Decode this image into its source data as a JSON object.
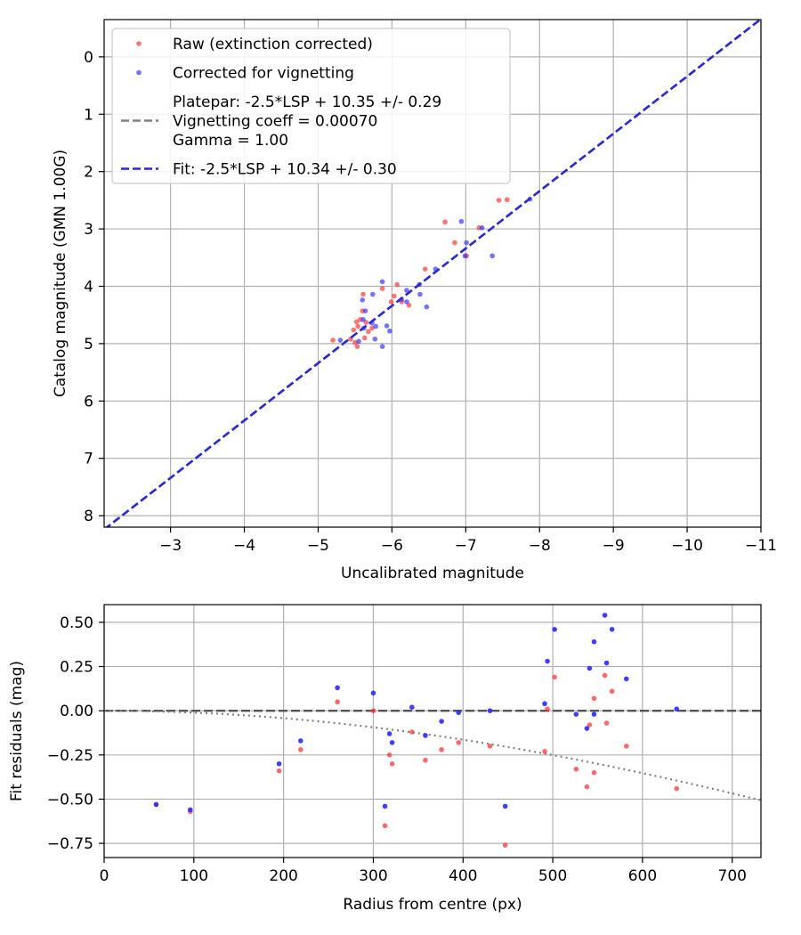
{
  "colors": {
    "raw": "#ff2a2a",
    "corrected": "#2a2aff",
    "fit": "#2a2ad4",
    "platepar": "#808080",
    "vignetting_curve": "#808080",
    "grid": "#b0b0b0"
  },
  "chart_data": [
    {
      "type": "scatter",
      "xlabel": "Uncalibrated magnitude",
      "ylabel": "Catalog magnitude (GMN 1.00G)",
      "xlim": [
        -2.1,
        -11
      ],
      "ylim": [
        8.2,
        -0.65
      ],
      "xticks": [
        -3,
        -4,
        -5,
        -6,
        -7,
        -8,
        -9,
        -10,
        -11
      ],
      "xtick_labels": [
        "−3",
        "−4",
        "−5",
        "−6",
        "−7",
        "−8",
        "−9",
        "−10",
        "−11"
      ],
      "yticks": [
        0,
        1,
        2,
        3,
        4,
        5,
        6,
        7,
        8
      ],
      "ytick_labels": [
        "0",
        "1",
        "2",
        "3",
        "4",
        "5",
        "6",
        "7",
        "8"
      ],
      "grid": true,
      "legend": {
        "location": "top-left",
        "entries": [
          {
            "key": "raw",
            "marker": "dot",
            "lines": [
              "Raw (extinction corrected)"
            ]
          },
          {
            "key": "corrected",
            "marker": "dot",
            "lines": [
              "Corrected for vignetting"
            ]
          },
          {
            "key": "platepar",
            "marker": "dash",
            "lines": [
              "Platepar: -2.5*LSP + 10.35 +/- 0.29",
              "Vignetting coeff = 0.00070",
              "Gamma = 1.00"
            ]
          },
          {
            "key": "fit",
            "marker": "dash",
            "lines": [
              "Fit: -2.5*LSP + 10.34 +/- 0.30"
            ]
          }
        ]
      },
      "series": [
        {
          "name": "Raw (extinction corrected)",
          "key": "raw",
          "points": [
            [
              -7.56,
              2.49
            ],
            [
              -7.45,
              2.5
            ],
            [
              -6.72,
              2.88
            ],
            [
              -6.85,
              3.24
            ],
            [
              -7.18,
              2.98
            ],
            [
              -7.01,
              3.47
            ],
            [
              -6.45,
              3.7
            ],
            [
              -6.07,
              3.97
            ],
            [
              -5.87,
              4.04
            ],
            [
              -6.03,
              4.17
            ],
            [
              -5.99,
              4.27
            ],
            [
              -6.13,
              4.27
            ],
            [
              -6.23,
              4.33
            ],
            [
              -5.61,
              4.14
            ],
            [
              -5.6,
              4.43
            ],
            [
              -5.65,
              4.63
            ],
            [
              -5.57,
              4.58
            ],
            [
              -5.52,
              4.62
            ],
            [
              -5.54,
              4.7
            ],
            [
              -5.48,
              4.76
            ],
            [
              -5.73,
              4.73
            ],
            [
              -5.68,
              4.79
            ],
            [
              -5.63,
              4.9
            ],
            [
              -5.44,
              4.92
            ],
            [
              -5.5,
              4.98
            ],
            [
              -5.53,
              5.05
            ],
            [
              -5.2,
              4.94
            ]
          ]
        },
        {
          "name": "Corrected for vignetting",
          "key": "corrected",
          "points": [
            [
              -7.87,
              2.48
            ],
            [
              -6.94,
              2.87
            ],
            [
              -7.22,
              2.98
            ],
            [
              -7.01,
              3.24
            ],
            [
              -7.36,
              3.47
            ],
            [
              -6.99,
              3.47
            ],
            [
              -6.59,
              3.7
            ],
            [
              -6.37,
              3.97
            ],
            [
              -6.2,
              4.07
            ],
            [
              -6.38,
              4.14
            ],
            [
              -6.13,
              4.23
            ],
            [
              -6.2,
              4.27
            ],
            [
              -6.47,
              4.36
            ],
            [
              -5.87,
              3.92
            ],
            [
              -5.74,
              4.14
            ],
            [
              -5.6,
              4.24
            ],
            [
              -5.64,
              4.43
            ],
            [
              -5.61,
              4.58
            ],
            [
              -5.73,
              4.64
            ],
            [
              -5.93,
              4.69
            ],
            [
              -5.97,
              4.78
            ],
            [
              -5.62,
              4.73
            ],
            [
              -5.77,
              4.92
            ],
            [
              -5.3,
              4.94
            ],
            [
              -5.87,
              5.05
            ],
            [
              -5.55,
              4.96
            ],
            [
              -5.78,
              4.7
            ]
          ]
        },
        {
          "name": "Platepar: -2.5*LSP + 10.35 +/- 0.29",
          "key": "platepar",
          "line": [
            [
              -2.1,
              8.24
            ],
            [
              -11,
              -0.66
            ]
          ]
        },
        {
          "name": "Fit: -2.5*LSP + 10.34 +/- 0.30",
          "key": "fit",
          "line": [
            [
              -2.1,
              8.24
            ],
            [
              -11,
              -0.66
            ]
          ]
        }
      ]
    },
    {
      "type": "scatter",
      "xlabel": "Radius from centre (px)",
      "ylabel": "Fit residuals (mag)",
      "xlim": [
        0,
        732
      ],
      "ylim": [
        -0.83,
        0.6
      ],
      "xticks": [
        0,
        100,
        200,
        300,
        400,
        500,
        600,
        700
      ],
      "xtick_labels": [
        "0",
        "100",
        "200",
        "300",
        "400",
        "500",
        "600",
        "700"
      ],
      "yticks": [
        0.5,
        0.25,
        0,
        -0.25,
        -0.5,
        -0.75
      ],
      "ytick_labels": [
        "0.50",
        "0.25",
        "0.00",
        "−0.25",
        "−0.50",
        "−0.75"
      ],
      "grid": true,
      "zero_line": 0,
      "vignetting_curve": {
        "coeff": 0.0007,
        "x_from": 0,
        "x_to": 732
      },
      "series": [
        {
          "name": "Raw (extinction corrected)",
          "key": "raw",
          "points": [
            [
              58,
              -0.53
            ],
            [
              96,
              -0.57
            ],
            [
              195,
              -0.34
            ],
            [
              219,
              -0.22
            ],
            [
              260,
              0.05
            ],
            [
              300,
              0.0
            ],
            [
              313,
              -0.65
            ],
            [
              318,
              -0.25
            ],
            [
              321,
              -0.3
            ],
            [
              343,
              -0.12
            ],
            [
              358,
              -0.28
            ],
            [
              376,
              -0.22
            ],
            [
              395,
              -0.18
            ],
            [
              430,
              -0.2
            ],
            [
              447,
              -0.76
            ],
            [
              491,
              -0.23
            ],
            [
              494,
              0.01
            ],
            [
              502,
              0.19
            ],
            [
              526,
              -0.33
            ],
            [
              538,
              -0.43
            ],
            [
              541,
              -0.08
            ],
            [
              546,
              0.07
            ],
            [
              546,
              -0.35
            ],
            [
              558,
              0.2
            ],
            [
              560,
              -0.07
            ],
            [
              566,
              0.11
            ],
            [
              582,
              -0.2
            ],
            [
              638,
              -0.44
            ]
          ]
        },
        {
          "name": "Corrected for vignetting",
          "key": "corrected",
          "points": [
            [
              58,
              -0.53
            ],
            [
              96,
              -0.56
            ],
            [
              195,
              -0.3
            ],
            [
              219,
              -0.17
            ],
            [
              260,
              0.13
            ],
            [
              300,
              0.1
            ],
            [
              313,
              -0.54
            ],
            [
              318,
              -0.13
            ],
            [
              321,
              -0.18
            ],
            [
              343,
              0.02
            ],
            [
              358,
              -0.14
            ],
            [
              376,
              -0.06
            ],
            [
              395,
              -0.01
            ],
            [
              430,
              0.0
            ],
            [
              447,
              -0.54
            ],
            [
              491,
              0.04
            ],
            [
              494,
              0.28
            ],
            [
              502,
              0.46
            ],
            [
              526,
              -0.02
            ],
            [
              538,
              -0.1
            ],
            [
              541,
              0.24
            ],
            [
              546,
              0.39
            ],
            [
              546,
              -0.02
            ],
            [
              558,
              0.54
            ],
            [
              560,
              0.27
            ],
            [
              566,
              0.46
            ],
            [
              582,
              0.18
            ],
            [
              638,
              0.01
            ]
          ]
        }
      ]
    }
  ]
}
